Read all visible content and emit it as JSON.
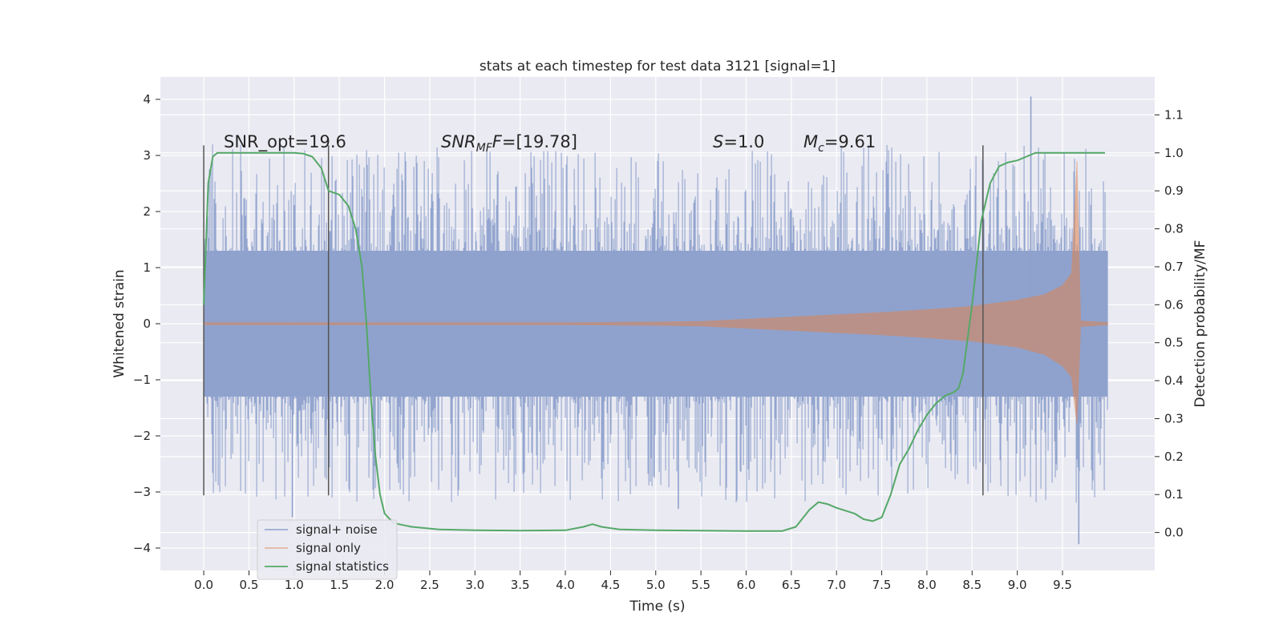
{
  "chart_data": {
    "type": "line",
    "title": "stats at each timestep for test data 3121 [signal=1]",
    "xlabel": "Time (s)",
    "ylabel": "Whitened strain",
    "y2label": "Detection probability/MF",
    "xlim": [
      -0.48,
      10.52
    ],
    "ylim": [
      -4.4,
      4.4
    ],
    "y2lim": [
      -0.1,
      1.2
    ],
    "xticks": [
      "0.0",
      "0.5",
      "1.0",
      "1.5",
      "2.0",
      "2.5",
      "3.0",
      "3.5",
      "4.0",
      "4.5",
      "5.0",
      "5.5",
      "6.0",
      "6.5",
      "7.0",
      "7.5",
      "8.0",
      "8.5",
      "9.0",
      "9.5"
    ],
    "yticks": [
      "4",
      "3",
      "2",
      "1",
      "0",
      "−1",
      "−2",
      "−3",
      "−4"
    ],
    "y2ticks": [
      "1.1",
      "1.0",
      "0.9",
      "0.8",
      "0.7",
      "0.6",
      "0.5",
      "0.4",
      "0.3",
      "0.2",
      "0.1",
      "0.0"
    ],
    "grid": true,
    "legend_placement": "lower-left",
    "colors": {
      "background": "#eaeaf2",
      "noise": "#8ea1cc",
      "signal": "#dd8452",
      "statistics": "#55a868",
      "vline": "#555555"
    },
    "annotations": [
      {
        "text": "SNR_opt=19.6"
      },
      {
        "main": "SNR",
        "sub": "MF",
        "rest": "=[19.78]"
      },
      {
        "main": "S",
        "rest": "=1.0"
      },
      {
        "main": "M",
        "sub": "c",
        "rest": "=9.61"
      }
    ],
    "vertical_lines_x": [
      0.0,
      1.38,
      8.62
    ],
    "series": [
      {
        "name": "signal+ noise",
        "x_range": [
          0.0,
          10.0
        ],
        "core_amplitude": 1.3,
        "max": 4.05,
        "min": -3.93,
        "notable_peaks": [
          [
            9.15,
            4.05
          ],
          [
            9.68,
            -3.93
          ],
          [
            0.98,
            -3.45
          ],
          [
            5.25,
            -3.3
          ]
        ]
      },
      {
        "name": "signal only",
        "envelope_x": [
          0.0,
          1.0,
          2.0,
          3.0,
          4.0,
          5.0,
          5.5,
          6.0,
          6.5,
          7.0,
          7.5,
          8.0,
          8.5,
          9.0,
          9.3,
          9.5,
          9.6,
          9.66,
          9.7,
          10.0
        ],
        "envelope_upper": [
          0.02,
          0.02,
          0.02,
          0.02,
          0.02,
          0.03,
          0.04,
          0.08,
          0.12,
          0.16,
          0.2,
          0.25,
          0.31,
          0.42,
          0.52,
          0.68,
          0.9,
          2.9,
          0.05,
          0.02
        ],
        "envelope_lower": [
          -0.02,
          -0.02,
          -0.02,
          -0.02,
          -0.02,
          -0.03,
          -0.04,
          -0.08,
          -0.12,
          -0.16,
          -0.2,
          -0.25,
          -0.31,
          -0.42,
          -0.55,
          -0.75,
          -0.95,
          -1.8,
          -0.05,
          -0.02
        ]
      },
      {
        "name": "signal statistics",
        "x": [
          0.0,
          0.05,
          0.1,
          0.15,
          0.3,
          0.5,
          0.8,
          1.0,
          1.1,
          1.2,
          1.3,
          1.38,
          1.5,
          1.6,
          1.68,
          1.75,
          1.8,
          1.85,
          1.9,
          1.95,
          2.0,
          2.1,
          2.3,
          2.6,
          3.0,
          3.5,
          4.0,
          4.2,
          4.3,
          4.4,
          4.6,
          5.0,
          5.5,
          6.0,
          6.4,
          6.55,
          6.7,
          6.8,
          6.9,
          7.0,
          7.2,
          7.3,
          7.4,
          7.5,
          7.6,
          7.7,
          7.8,
          7.9,
          8.0,
          8.1,
          8.2,
          8.3,
          8.35,
          8.4,
          8.5,
          8.6,
          8.7,
          8.8,
          8.9,
          9.0,
          9.1,
          9.2,
          9.3,
          9.5,
          9.7,
          9.9,
          9.97
        ],
        "y": [
          0.6,
          0.92,
          0.99,
          1.0,
          1.0,
          1.0,
          1.0,
          1.0,
          0.998,
          0.99,
          0.96,
          0.9,
          0.89,
          0.86,
          0.8,
          0.7,
          0.55,
          0.35,
          0.2,
          0.1,
          0.05,
          0.025,
          0.015,
          0.008,
          0.006,
          0.005,
          0.006,
          0.015,
          0.022,
          0.015,
          0.008,
          0.006,
          0.005,
          0.004,
          0.004,
          0.015,
          0.06,
          0.08,
          0.075,
          0.065,
          0.05,
          0.035,
          0.03,
          0.04,
          0.1,
          0.18,
          0.22,
          0.27,
          0.31,
          0.34,
          0.36,
          0.37,
          0.38,
          0.42,
          0.6,
          0.82,
          0.92,
          0.965,
          0.975,
          0.98,
          0.99,
          1.0,
          1.0,
          1.0,
          1.0,
          1.0,
          1.0
        ]
      }
    ]
  }
}
